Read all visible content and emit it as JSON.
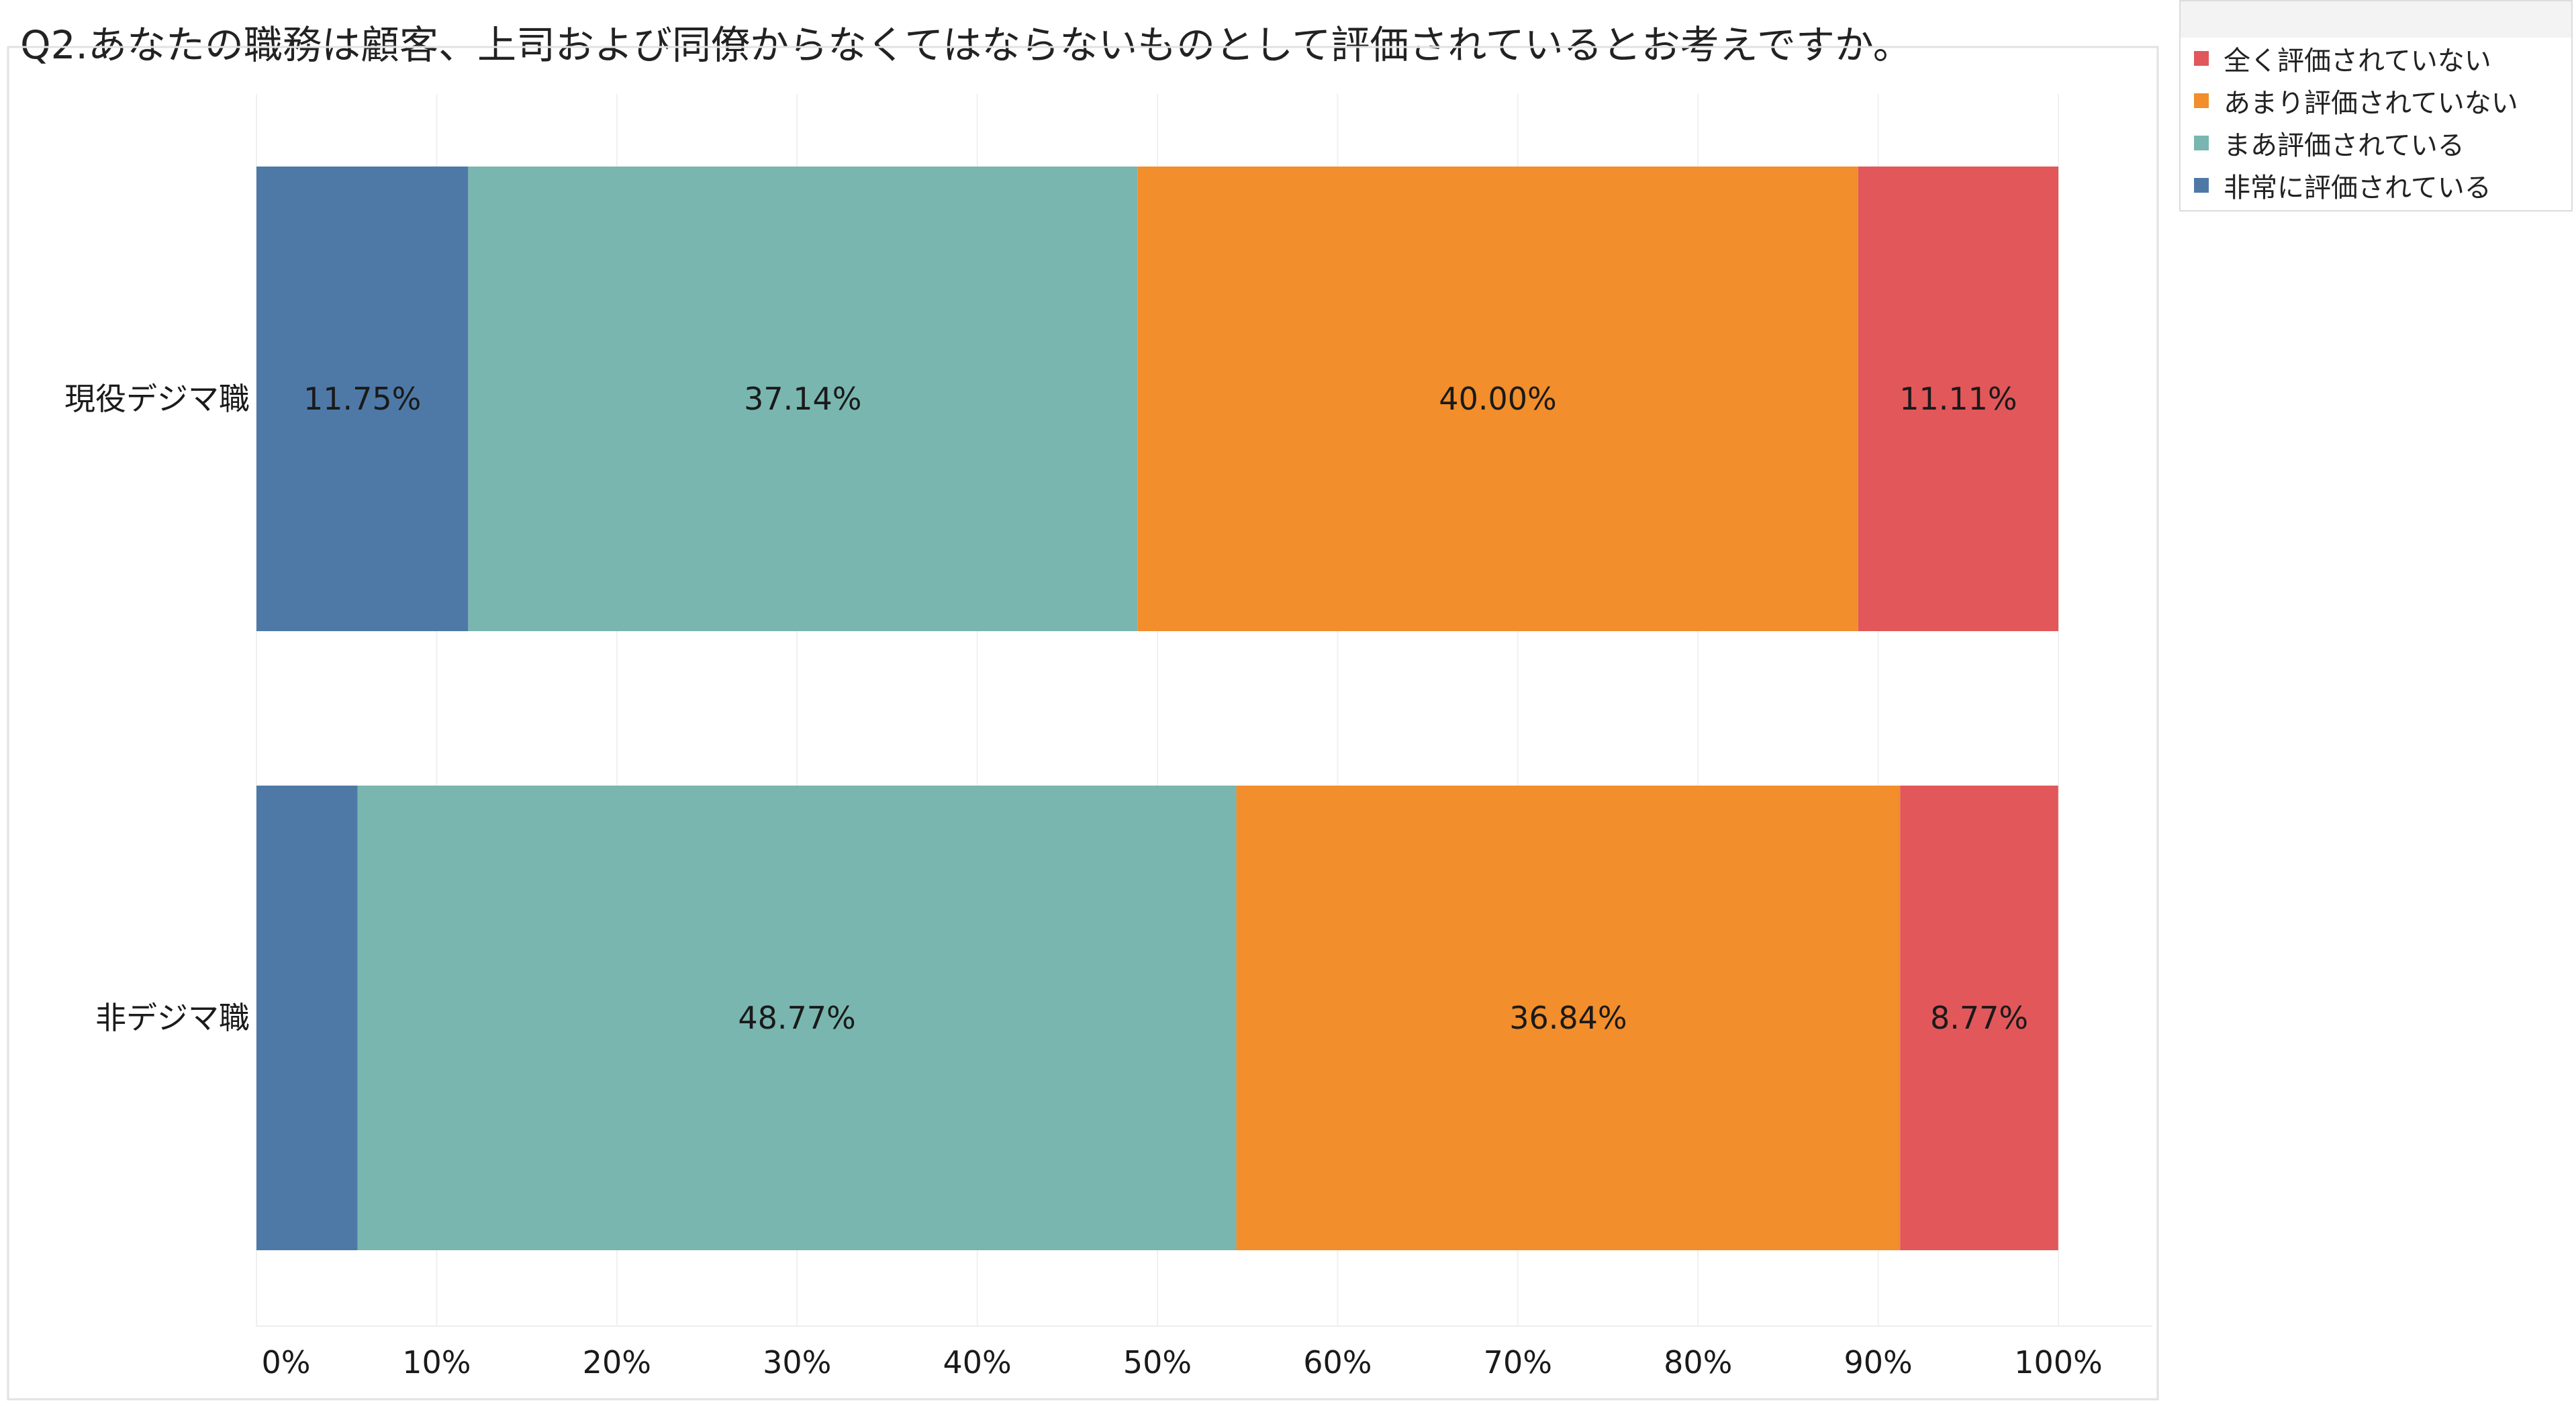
{
  "chart_data": {
    "type": "bar",
    "orientation": "horizontal",
    "stacked": true,
    "title": "Q2.あなたの職務は顧客、上司および同僚からなくてはならないものとして評価されているとお考えですか。",
    "categories": [
      "現役デジマ職",
      "非デジマ職"
    ],
    "series": [
      {
        "name": "非常に評価されている",
        "color": "#4e79a7",
        "values": [
          11.75,
          5.61
        ],
        "labels": [
          "11.75%",
          ""
        ]
      },
      {
        "name": "まあ評価されている",
        "color": "#79b6af",
        "values": [
          37.14,
          48.77
        ],
        "labels": [
          "37.14%",
          "48.77%"
        ]
      },
      {
        "name": "あまり評価されていない",
        "color": "#f28e2b",
        "values": [
          40.0,
          36.84
        ],
        "labels": [
          "40.00%",
          "36.84%"
        ]
      },
      {
        "name": "全く評価されていない",
        "color": "#e1575a",
        "values": [
          11.11,
          8.77
        ],
        "labels": [
          "11.11%",
          "8.77%"
        ]
      }
    ],
    "x_ticks": [
      "0%",
      "10%",
      "20%",
      "30%",
      "40%",
      "50%",
      "60%",
      "70%",
      "80%",
      "90%",
      "100%"
    ],
    "xlim": [
      0,
      100
    ],
    "grid": true,
    "legend": {
      "position": "top-right",
      "order": [
        "全く評価されていない",
        "あまり評価されていない",
        "まあ評価されている",
        "非常に評価されている"
      ]
    }
  }
}
